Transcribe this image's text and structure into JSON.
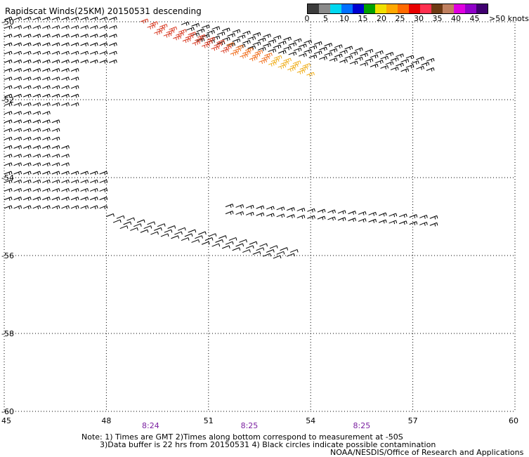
{
  "title": "Rapidscat Winds(25KM) 20150531 descending",
  "legend": {
    "units": ">50 knots",
    "labels": [
      "0",
      "5",
      "10",
      "15",
      "20",
      "25",
      "30",
      "35",
      "40",
      "45"
    ],
    "colors": [
      "#3c3c3c",
      "#8a8a8a",
      "#00d8f0",
      "#0070ff",
      "#0000d0",
      "#00a000",
      "#f0e000",
      "#ffa800",
      "#ff6a00",
      "#e80000",
      "#ff3050",
      "#6e3a14",
      "#c08060",
      "#e000e0",
      "#9000c8",
      "#400070"
    ]
  },
  "axes": {
    "lon_ticks": [
      "45",
      "48",
      "51",
      "54",
      "57",
      "60"
    ],
    "lat_ticks": [
      "-50",
      "-52",
      "-54",
      "-56",
      "-58",
      "-60"
    ],
    "lon_range": [
      45,
      60
    ],
    "lat_range": [
      -50,
      -60
    ]
  },
  "time_labels": [
    {
      "text": "8:24",
      "lon": 49.3
    },
    {
      "text": "8:25",
      "lon": 52.2
    },
    {
      "text": "8:25",
      "lon": 55.5
    }
  ],
  "notes": {
    "line1": "Note: 1) Times are GMT 2)Times along bottom correspond to measurement at -50S",
    "line2": "3)Data buffer is 22 hrs from 20150531 4) Black circles indicate possible contamination",
    "line3": "NOAA/NESDIS/Office of Research and Applications"
  },
  "wind_swaths": [
    {
      "name": "west-block",
      "lon": [
        45.0,
        48.2
      ],
      "lat": [
        -50.0,
        -55.0
      ],
      "speed_kt": 15,
      "color": "#000000"
    },
    {
      "name": "north-band",
      "lon": [
        48.0,
        57.5
      ],
      "lat": [
        -50.0,
        -51.3
      ],
      "speed_kt": 20,
      "color": "#000000"
    },
    {
      "name": "high-wind-streak",
      "lon": [
        48.8,
        53.9
      ],
      "lat": [
        -50.0,
        -51.4
      ],
      "speed_kt": 30,
      "color": "#d04020"
    },
    {
      "name": "south-tail",
      "lon": [
        48.0,
        53.5
      ],
      "lat": [
        -55.0,
        -56.1
      ],
      "speed_kt": 15,
      "color": "#000000"
    },
    {
      "name": "east-band",
      "lon": [
        51.5,
        57.5
      ],
      "lat": [
        -54.7,
        -55.3
      ],
      "speed_kt": 15,
      "color": "#000000"
    }
  ]
}
